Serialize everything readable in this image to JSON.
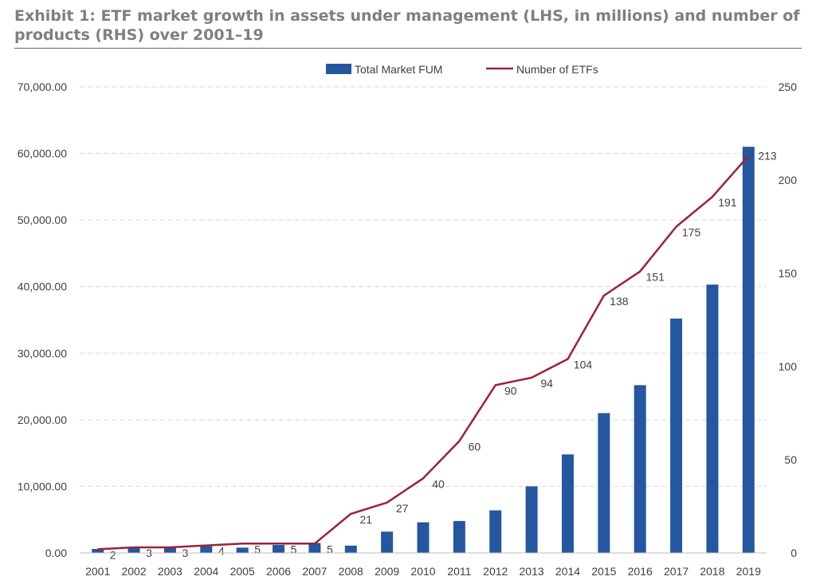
{
  "header": {
    "title": "Exhibit 1: ETF market growth in assets under management (LHS, in millions) and number of products (RHS) over 2001–19"
  },
  "colors": {
    "bar": "#2557a0",
    "line": "#9b2335",
    "grid": "#d9d9d9",
    "text": "#404040"
  },
  "chart_data": {
    "type": "bar",
    "categories": [
      "2001",
      "2002",
      "2003",
      "2004",
      "2005",
      "2006",
      "2007",
      "2008",
      "2009",
      "2010",
      "2011",
      "2012",
      "2013",
      "2014",
      "2015",
      "2016",
      "2017",
      "2018",
      "2019"
    ],
    "series": [
      {
        "name": "Total Market FUM",
        "type": "bar",
        "axis": "left",
        "values": [
          600,
          800,
          900,
          1000,
          800,
          1200,
          1500,
          1100,
          3200,
          4600,
          4800,
          6400,
          10000,
          14800,
          21000,
          25200,
          35200,
          40300,
          61000
        ]
      },
      {
        "name": "Number of ETFs",
        "type": "line",
        "axis": "right",
        "values": [
          2,
          3,
          3,
          4,
          5,
          5,
          5,
          21,
          27,
          40,
          60,
          90,
          94,
          104,
          138,
          151,
          175,
          191,
          213
        ],
        "labels": [
          "2",
          "3",
          "3",
          "4",
          "5",
          "5",
          "5",
          "21",
          "27",
          "40",
          "60",
          "90",
          "94",
          "104",
          "138",
          "151",
          "175",
          "191",
          "213"
        ]
      }
    ],
    "y_left": {
      "ylim": [
        0,
        70000
      ],
      "ticks": [
        0,
        10000,
        20000,
        30000,
        40000,
        50000,
        60000,
        70000
      ],
      "tick_labels": [
        "0.00",
        "10,000.00",
        "20,000.00",
        "30,000.00",
        "40,000.00",
        "50,000.00",
        "60,000.00",
        "70,000.00"
      ]
    },
    "y_right": {
      "ylim": [
        0,
        250
      ],
      "ticks": [
        0,
        50,
        100,
        150,
        200,
        250
      ],
      "tick_labels": [
        "0",
        "50",
        "100",
        "150",
        "200",
        "250"
      ]
    },
    "grid": true,
    "legend_position": "top-center"
  }
}
